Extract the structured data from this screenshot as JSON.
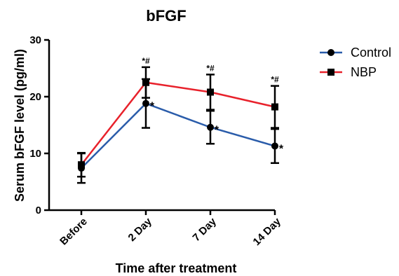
{
  "chart_data": {
    "type": "line",
    "title": "bFGF",
    "xlabel": "Time after treatment",
    "ylabel": "Serum bFGF level (pg/ml)",
    "categories": [
      "Before",
      "2 Day",
      "7 Day",
      "14 Day"
    ],
    "ylim": [
      0,
      30
    ],
    "yticks": [
      0,
      10,
      20,
      30
    ],
    "grid": false,
    "legend_position": "top-right",
    "series": [
      {
        "name": "Control",
        "color": "#2a5caa",
        "marker": "circle",
        "values": [
          7.4,
          18.8,
          14.6,
          11.3
        ],
        "error": [
          2.6,
          4.3,
          2.9,
          3.0
        ],
        "annotations": [
          "",
          "*",
          "*",
          "*"
        ]
      },
      {
        "name": "NBP",
        "color": "#e8212b",
        "marker": "square",
        "values": [
          8.0,
          22.5,
          20.8,
          18.2
        ],
        "error": [
          2.1,
          2.7,
          3.1,
          3.7
        ],
        "annotations": [
          "",
          "*#",
          "*#",
          "*#"
        ]
      }
    ]
  }
}
